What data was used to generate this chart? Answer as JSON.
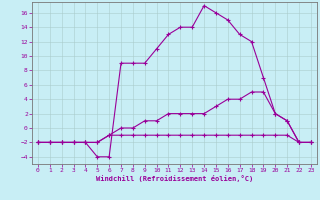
{
  "xlabel": "Windchill (Refroidissement éolien,°C)",
  "bg_color": "#c8eef5",
  "line_color": "#990099",
  "grid_color": "#aacccc",
  "xlim": [
    -0.5,
    23.5
  ],
  "ylim": [
    -5,
    17.5
  ],
  "xticks": [
    0,
    1,
    2,
    3,
    4,
    5,
    6,
    7,
    8,
    9,
    10,
    11,
    12,
    13,
    14,
    15,
    16,
    17,
    18,
    19,
    20,
    21,
    22,
    23
  ],
  "yticks": [
    -4,
    -2,
    0,
    2,
    4,
    6,
    8,
    10,
    12,
    14,
    16
  ],
  "curve1_x": [
    0,
    1,
    2,
    3,
    4,
    5,
    6,
    7,
    8,
    9,
    10,
    11,
    12,
    13,
    14,
    15,
    16,
    17,
    18,
    19,
    20,
    21,
    22,
    23
  ],
  "curve1_y": [
    -2,
    -2,
    -2,
    -2,
    -2,
    -2,
    -1,
    -1,
    -1,
    -1,
    -1,
    -1,
    -1,
    -1,
    -1,
    -1,
    -1,
    -1,
    -1,
    -1,
    -1,
    -1,
    -2,
    -2
  ],
  "curve2_x": [
    0,
    1,
    2,
    3,
    4,
    5,
    6,
    7,
    8,
    9,
    10,
    11,
    12,
    13,
    14,
    15,
    16,
    17,
    18,
    19,
    20,
    21,
    22,
    23
  ],
  "curve2_y": [
    -2,
    -2,
    -2,
    -2,
    -2,
    -2,
    -1,
    0,
    0,
    1,
    1,
    2,
    2,
    2,
    2,
    3,
    4,
    4,
    5,
    5,
    2,
    1,
    -2,
    -2
  ],
  "curve3_x": [
    0,
    1,
    2,
    3,
    4,
    5,
    6,
    7,
    8,
    9,
    10,
    11,
    12,
    13,
    14,
    15,
    16,
    17,
    18,
    19,
    20,
    21,
    22,
    23
  ],
  "curve3_y": [
    -2,
    -2,
    -2,
    -2,
    -2,
    -4,
    -4,
    9,
    9,
    9,
    11,
    13,
    14,
    14,
    17,
    16,
    15,
    13,
    12,
    7,
    2,
    1,
    -2,
    -2
  ]
}
